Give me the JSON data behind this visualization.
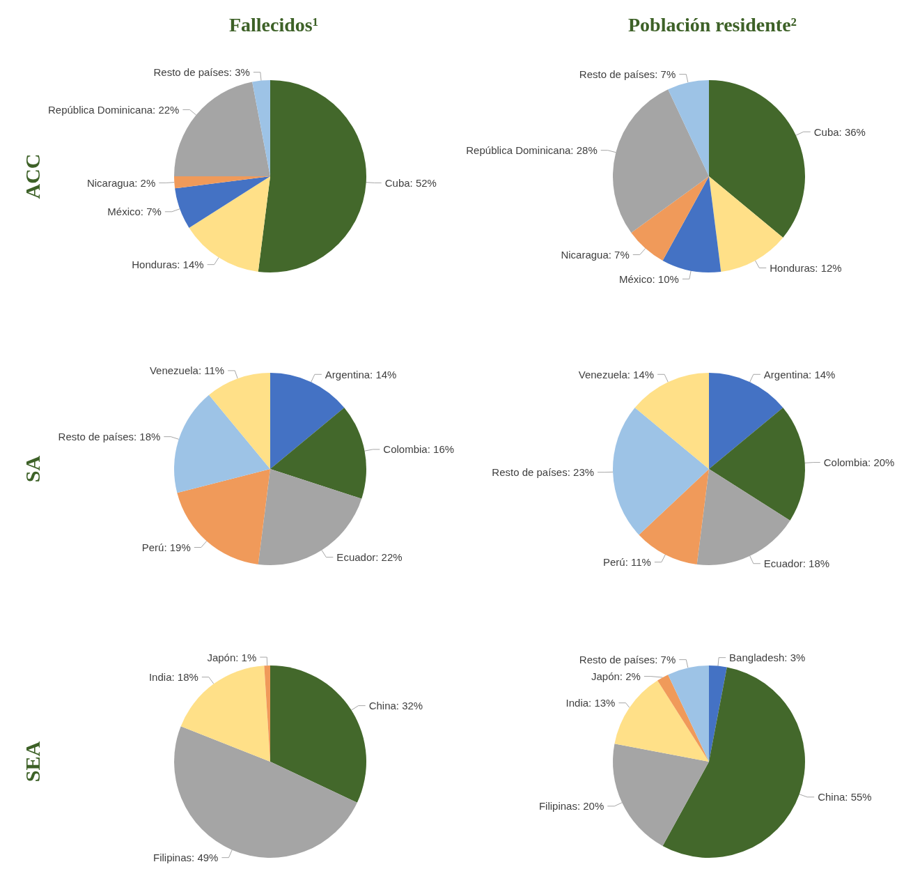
{
  "chart_data": [
    {
      "type": "pie",
      "title": "Fallecidos¹",
      "ylabel": "ACC",
      "categories": [
        "Cuba",
        "Honduras",
        "México",
        "Nicaragua",
        "República Dominicana",
        "Resto de países"
      ],
      "values": [
        52,
        14,
        7,
        2,
        22,
        3
      ],
      "value_labels": [
        "52%",
        "14%",
        "7%",
        "2%",
        "22%",
        "3%"
      ],
      "colors": [
        "#43682b",
        "#ffe088",
        "#4472c4",
        "#f09a5a",
        "#a5a5a5",
        "#9dc3e6"
      ]
    },
    {
      "type": "pie",
      "title": "Población residente²",
      "categories": [
        "Cuba",
        "Honduras",
        "México",
        "Nicaragua",
        "República Dominicana",
        "Resto de países"
      ],
      "values": [
        36,
        12,
        10,
        7,
        28,
        7
      ],
      "value_labels": [
        "36%",
        "12%",
        "10%",
        "7%",
        "28%",
        "7%"
      ],
      "colors": [
        "#43682b",
        "#ffe088",
        "#4472c4",
        "#f09a5a",
        "#a5a5a5",
        "#9dc3e6"
      ]
    },
    {
      "type": "pie",
      "ylabel": "SA",
      "categories": [
        "Argentina",
        "Colombia",
        "Ecuador",
        "Perú",
        "Resto de países",
        "Venezuela"
      ],
      "values": [
        14,
        16,
        22,
        19,
        18,
        11
      ],
      "value_labels": [
        "14%",
        "16%",
        "22%",
        "19%",
        "18%",
        "11%"
      ],
      "colors": [
        "#4472c4",
        "#43682b",
        "#a5a5a5",
        "#f09a5a",
        "#9dc3e6",
        "#ffe088"
      ]
    },
    {
      "type": "pie",
      "categories": [
        "Argentina",
        "Colombia",
        "Ecuador",
        "Perú",
        "Resto de países",
        "Venezuela"
      ],
      "values": [
        14,
        20,
        18,
        11,
        23,
        14
      ],
      "value_labels": [
        "14%",
        "20%",
        "18%",
        "11%",
        "23%",
        "14%"
      ],
      "colors": [
        "#4472c4",
        "#43682b",
        "#a5a5a5",
        "#f09a5a",
        "#9dc3e6",
        "#ffe088"
      ]
    },
    {
      "type": "pie",
      "ylabel": "SEA",
      "categories": [
        "China",
        "Filipinas",
        "India",
        "Japón"
      ],
      "values": [
        32,
        49,
        18,
        1
      ],
      "value_labels": [
        "32%",
        "49%",
        "18%",
        "1%"
      ],
      "colors": [
        "#43682b",
        "#a5a5a5",
        "#ffe088",
        "#f09a5a"
      ]
    },
    {
      "type": "pie",
      "categories": [
        "Bangladesh",
        "China",
        "Filipinas",
        "India",
        "Japón",
        "Resto de países"
      ],
      "values": [
        3,
        55,
        20,
        13,
        2,
        7
      ],
      "value_labels": [
        "3%",
        "55%",
        "20%",
        "13%",
        "2%",
        "7%"
      ],
      "colors": [
        "#4472c4",
        "#43682b",
        "#a5a5a5",
        "#ffe088",
        "#f09a5a",
        "#9dc3e6"
      ]
    }
  ]
}
